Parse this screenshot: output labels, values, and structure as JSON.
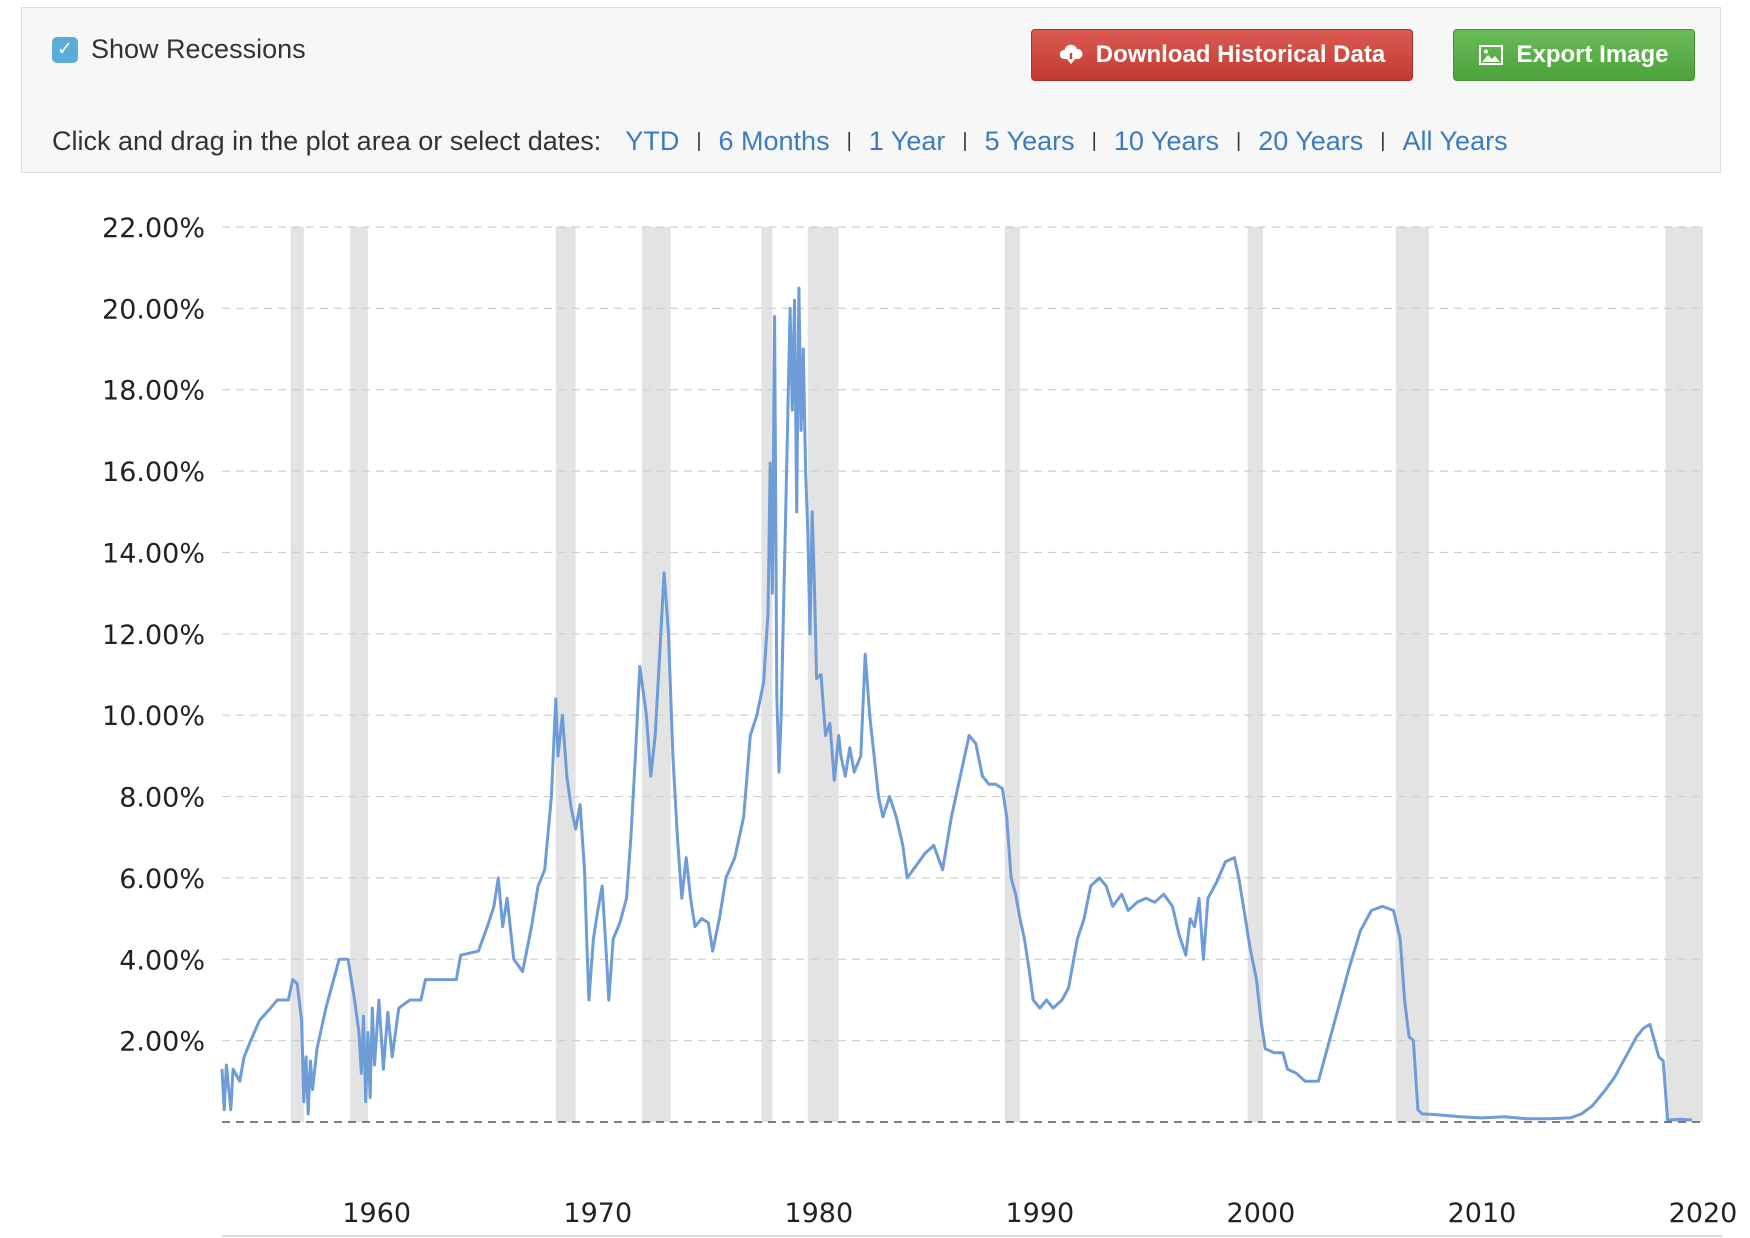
{
  "controls": {
    "show_recessions_label": "Show Recessions",
    "show_recessions_checked": true,
    "download_label": "Download Historical Data",
    "download_icon": "cloud-download-icon",
    "export_label": "Export Image",
    "export_icon": "image-icon",
    "range_prompt": "Click and drag in the plot area or select dates:",
    "ranges": [
      "YTD",
      "6 Months",
      "1 Year",
      "5 Years",
      "10 Years",
      "20 Years",
      "All Years"
    ]
  },
  "colors": {
    "line": "#6d9cd6",
    "recession_band": "#e3e3e3",
    "link": "#3a7bc1",
    "download_button": "#c9433a",
    "export_button": "#59ad46"
  },
  "chart_data": {
    "type": "line",
    "y_tick_labels": [
      "2.00%",
      "4.00%",
      "6.00%",
      "8.00%",
      "10.00%",
      "12.00%",
      "14.00%",
      "16.00%",
      "18.00%",
      "20.00%",
      "22.00%"
    ],
    "x_tick_labels": [
      "1960",
      "1970",
      "1980",
      "1990",
      "2000",
      "2010",
      "2020"
    ],
    "xlim": [
      1953.0,
      2020.0
    ],
    "ylim": [
      0,
      22
    ],
    "grid": true,
    "recessions": [
      [
        1956.1,
        1956.7
      ],
      [
        1958.8,
        1959.6
      ],
      [
        1968.1,
        1969.0
      ],
      [
        1972.0,
        1973.3
      ],
      [
        1977.4,
        1977.9
      ],
      [
        1979.5,
        1980.9
      ],
      [
        1988.4,
        1989.1
      ],
      [
        1999.4,
        2000.1
      ],
      [
        2006.1,
        2007.6
      ],
      [
        2018.3,
        2020.0
      ]
    ],
    "series": [
      {
        "points": [
          [
            1953.0,
            1.3
          ],
          [
            1953.1,
            0.3
          ],
          [
            1953.2,
            1.4
          ],
          [
            1953.4,
            0.3
          ],
          [
            1953.5,
            1.3
          ],
          [
            1953.8,
            1.0
          ],
          [
            1954.0,
            1.6
          ],
          [
            1954.3,
            2.0
          ],
          [
            1954.7,
            2.5
          ],
          [
            1955.2,
            2.8
          ],
          [
            1955.5,
            3.0
          ],
          [
            1956.0,
            3.0
          ],
          [
            1956.2,
            3.5
          ],
          [
            1956.4,
            3.4
          ],
          [
            1956.6,
            2.5
          ],
          [
            1956.7,
            0.5
          ],
          [
            1956.8,
            1.6
          ],
          [
            1956.9,
            0.2
          ],
          [
            1957.0,
            1.5
          ],
          [
            1957.1,
            0.8
          ],
          [
            1957.3,
            1.8
          ],
          [
            1957.7,
            2.8
          ],
          [
            1958.0,
            3.4
          ],
          [
            1958.3,
            4.0
          ],
          [
            1958.7,
            4.0
          ],
          [
            1959.0,
            3.0
          ],
          [
            1959.2,
            2.2
          ],
          [
            1959.3,
            1.2
          ],
          [
            1959.4,
            2.6
          ],
          [
            1959.5,
            0.5
          ],
          [
            1959.6,
            2.2
          ],
          [
            1959.7,
            0.6
          ],
          [
            1959.8,
            2.8
          ],
          [
            1959.9,
            1.4
          ],
          [
            1960.1,
            3.0
          ],
          [
            1960.3,
            1.3
          ],
          [
            1960.5,
            2.7
          ],
          [
            1960.7,
            1.6
          ],
          [
            1961.0,
            2.8
          ],
          [
            1961.5,
            3.0
          ],
          [
            1962.0,
            3.0
          ],
          [
            1962.2,
            3.5
          ],
          [
            1963.6,
            3.5
          ],
          [
            1963.8,
            4.1
          ],
          [
            1964.6,
            4.2
          ],
          [
            1965.0,
            4.8
          ],
          [
            1965.3,
            5.3
          ],
          [
            1965.5,
            6.0
          ],
          [
            1965.7,
            4.8
          ],
          [
            1965.9,
            5.5
          ],
          [
            1966.2,
            4.0
          ],
          [
            1966.6,
            3.7
          ],
          [
            1967.0,
            4.8
          ],
          [
            1967.3,
            5.8
          ],
          [
            1967.6,
            6.2
          ],
          [
            1967.9,
            8.0
          ],
          [
            1968.1,
            10.4
          ],
          [
            1968.2,
            9.0
          ],
          [
            1968.4,
            10.0
          ],
          [
            1968.6,
            8.5
          ],
          [
            1968.8,
            7.7
          ],
          [
            1969.0,
            7.2
          ],
          [
            1969.2,
            7.8
          ],
          [
            1969.4,
            6.2
          ],
          [
            1969.5,
            4.5
          ],
          [
            1969.6,
            3.0
          ],
          [
            1969.8,
            4.5
          ],
          [
            1970.0,
            5.2
          ],
          [
            1970.2,
            5.8
          ],
          [
            1970.4,
            4.0
          ],
          [
            1970.5,
            3.0
          ],
          [
            1970.7,
            4.5
          ],
          [
            1971.0,
            4.9
          ],
          [
            1971.3,
            5.5
          ],
          [
            1971.5,
            7.0
          ],
          [
            1971.7,
            9.0
          ],
          [
            1971.9,
            11.2
          ],
          [
            1972.2,
            10.0
          ],
          [
            1972.4,
            8.5
          ],
          [
            1972.6,
            9.5
          ],
          [
            1972.8,
            11.5
          ],
          [
            1973.0,
            13.5
          ],
          [
            1973.2,
            12.0
          ],
          [
            1973.4,
            9.0
          ],
          [
            1973.6,
            7.0
          ],
          [
            1973.8,
            5.5
          ],
          [
            1974.0,
            6.5
          ],
          [
            1974.2,
            5.5
          ],
          [
            1974.4,
            4.8
          ],
          [
            1974.7,
            5.0
          ],
          [
            1975.0,
            4.9
          ],
          [
            1975.2,
            4.2
          ],
          [
            1975.5,
            5.0
          ],
          [
            1975.8,
            6.0
          ],
          [
            1976.2,
            6.5
          ],
          [
            1976.6,
            7.5
          ],
          [
            1976.9,
            9.5
          ],
          [
            1977.2,
            10.0
          ],
          [
            1977.5,
            10.8
          ],
          [
            1977.7,
            12.5
          ],
          [
            1977.8,
            16.2
          ],
          [
            1977.9,
            13.0
          ],
          [
            1978.0,
            19.8
          ],
          [
            1978.1,
            10.5
          ],
          [
            1978.2,
            8.6
          ],
          [
            1978.3,
            10.0
          ],
          [
            1978.5,
            15.0
          ],
          [
            1978.7,
            20.0
          ],
          [
            1978.8,
            17.5
          ],
          [
            1978.9,
            20.2
          ],
          [
            1979.0,
            15.0
          ],
          [
            1979.1,
            20.5
          ],
          [
            1979.2,
            17.0
          ],
          [
            1979.3,
            19.0
          ],
          [
            1979.4,
            16.0
          ],
          [
            1979.5,
            14.5
          ],
          [
            1979.6,
            12.0
          ],
          [
            1979.7,
            15.0
          ],
          [
            1979.8,
            13.2
          ],
          [
            1979.9,
            10.9
          ],
          [
            1980.1,
            11.0
          ],
          [
            1980.3,
            9.5
          ],
          [
            1980.5,
            9.8
          ],
          [
            1980.7,
            8.4
          ],
          [
            1980.9,
            9.5
          ],
          [
            1981.0,
            9.0
          ],
          [
            1981.2,
            8.5
          ],
          [
            1981.4,
            9.2
          ],
          [
            1981.6,
            8.6
          ],
          [
            1981.9,
            9.0
          ],
          [
            1982.1,
            11.5
          ],
          [
            1982.3,
            10.0
          ],
          [
            1982.5,
            9.0
          ],
          [
            1982.7,
            8.0
          ],
          [
            1982.9,
            7.5
          ],
          [
            1983.2,
            8.0
          ],
          [
            1983.5,
            7.5
          ],
          [
            1983.8,
            6.8
          ],
          [
            1984.0,
            6.0
          ],
          [
            1984.4,
            6.3
          ],
          [
            1984.8,
            6.6
          ],
          [
            1985.2,
            6.8
          ],
          [
            1985.6,
            6.2
          ],
          [
            1986.0,
            7.5
          ],
          [
            1986.4,
            8.5
          ],
          [
            1986.8,
            9.5
          ],
          [
            1987.1,
            9.3
          ],
          [
            1987.4,
            8.5
          ],
          [
            1987.7,
            8.3
          ],
          [
            1988.0,
            8.3
          ],
          [
            1988.3,
            8.2
          ],
          [
            1988.5,
            7.5
          ],
          [
            1988.7,
            6.0
          ],
          [
            1988.9,
            5.6
          ],
          [
            1989.1,
            5.0
          ],
          [
            1989.3,
            4.5
          ],
          [
            1989.5,
            3.8
          ],
          [
            1989.7,
            3.0
          ],
          [
            1990.0,
            2.8
          ],
          [
            1990.3,
            3.0
          ],
          [
            1990.6,
            2.8
          ],
          [
            1991.0,
            3.0
          ],
          [
            1991.3,
            3.3
          ],
          [
            1991.7,
            4.5
          ],
          [
            1992.0,
            5.0
          ],
          [
            1992.3,
            5.8
          ],
          [
            1992.7,
            6.0
          ],
          [
            1993.0,
            5.8
          ],
          [
            1993.3,
            5.3
          ],
          [
            1993.7,
            5.6
          ],
          [
            1994.0,
            5.2
          ],
          [
            1994.4,
            5.4
          ],
          [
            1994.8,
            5.5
          ],
          [
            1995.2,
            5.4
          ],
          [
            1995.6,
            5.6
          ],
          [
            1996.0,
            5.3
          ],
          [
            1996.3,
            4.6
          ],
          [
            1996.6,
            4.1
          ],
          [
            1996.8,
            5.0
          ],
          [
            1997.0,
            4.8
          ],
          [
            1997.2,
            5.5
          ],
          [
            1997.4,
            4.0
          ],
          [
            1997.6,
            5.5
          ],
          [
            1998.0,
            5.9
          ],
          [
            1998.4,
            6.4
          ],
          [
            1998.8,
            6.5
          ],
          [
            1999.0,
            6.0
          ],
          [
            1999.3,
            5.0
          ],
          [
            1999.5,
            4.3
          ],
          [
            1999.8,
            3.5
          ],
          [
            2000.0,
            2.5
          ],
          [
            2000.2,
            1.8
          ],
          [
            2000.6,
            1.7
          ],
          [
            2001.0,
            1.7
          ],
          [
            2001.2,
            1.3
          ],
          [
            2001.6,
            1.2
          ],
          [
            2002.0,
            1.0
          ],
          [
            2002.6,
            1.0
          ],
          [
            2003.0,
            1.8
          ],
          [
            2003.5,
            2.8
          ],
          [
            2004.0,
            3.8
          ],
          [
            2004.5,
            4.7
          ],
          [
            2005.0,
            5.2
          ],
          [
            2005.5,
            5.3
          ],
          [
            2006.0,
            5.2
          ],
          [
            2006.3,
            4.5
          ],
          [
            2006.5,
            3.0
          ],
          [
            2006.7,
            2.1
          ],
          [
            2006.9,
            2.0
          ],
          [
            2007.1,
            0.3
          ],
          [
            2007.3,
            0.2
          ],
          [
            2008.0,
            0.18
          ],
          [
            2009.0,
            0.13
          ],
          [
            2010.0,
            0.1
          ],
          [
            2011.0,
            0.13
          ],
          [
            2012.0,
            0.08
          ],
          [
            2013.0,
            0.08
          ],
          [
            2014.0,
            0.1
          ],
          [
            2014.5,
            0.2
          ],
          [
            2015.0,
            0.4
          ],
          [
            2015.6,
            0.8
          ],
          [
            2016.0,
            1.1
          ],
          [
            2016.5,
            1.6
          ],
          [
            2017.0,
            2.1
          ],
          [
            2017.3,
            2.3
          ],
          [
            2017.6,
            2.4
          ],
          [
            2017.8,
            2.0
          ],
          [
            2018.0,
            1.6
          ],
          [
            2018.2,
            1.5
          ],
          [
            2018.4,
            0.05
          ],
          [
            2019.0,
            0.07
          ],
          [
            2019.5,
            0.05
          ]
        ]
      }
    ]
  }
}
